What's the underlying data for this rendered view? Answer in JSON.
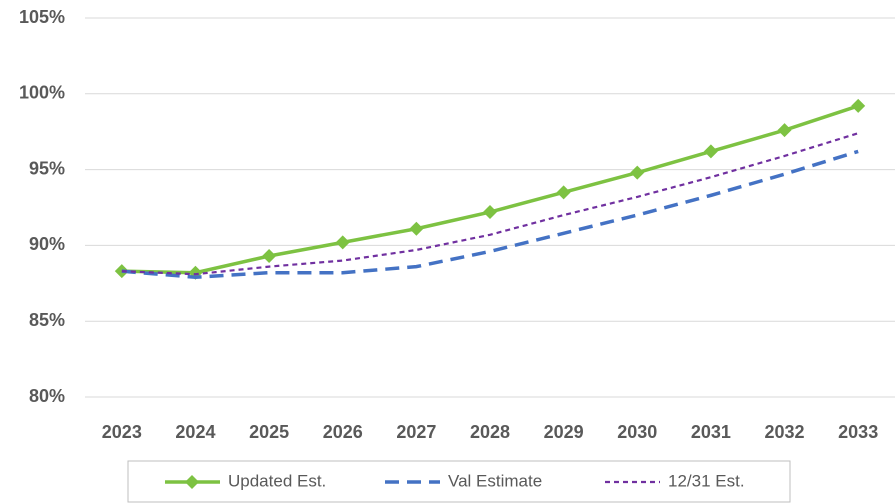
{
  "chart_data": {
    "type": "line",
    "categories": [
      "2023",
      "2024",
      "2025",
      "2026",
      "2027",
      "2028",
      "2029",
      "2030",
      "2031",
      "2032",
      "2033"
    ],
    "series": [
      {
        "name": "Updated Est.",
        "color": "#7dc242",
        "line_style": "solid",
        "marker": "diamond",
        "values": [
          88.3,
          88.2,
          89.3,
          90.2,
          91.1,
          92.2,
          93.5,
          94.8,
          96.2,
          97.6,
          99.2
        ]
      },
      {
        "name": "Val Estimate",
        "color": "#4472c4",
        "line_style": "long-dash",
        "marker": "none",
        "values": [
          88.3,
          87.9,
          88.2,
          88.2,
          88.6,
          89.6,
          90.8,
          92.0,
          93.3,
          94.7,
          96.2
        ]
      },
      {
        "name": "12/31 Est.",
        "color": "#7030a0",
        "line_style": "short-dash",
        "marker": "none",
        "values": [
          88.3,
          88.1,
          88.6,
          89.0,
          89.7,
          90.7,
          92.0,
          93.2,
          94.5,
          95.9,
          97.4
        ]
      }
    ],
    "ylim": [
      80,
      105
    ],
    "yticks": [
      {
        "value": 80,
        "label": "80%"
      },
      {
        "value": 85,
        "label": "85%"
      },
      {
        "value": 90,
        "label": "90%"
      },
      {
        "value": 95,
        "label": "95%"
      },
      {
        "value": 100,
        "label": "100%"
      },
      {
        "value": 105,
        "label": "105%"
      }
    ],
    "grid": true,
    "legend": "bottom"
  }
}
